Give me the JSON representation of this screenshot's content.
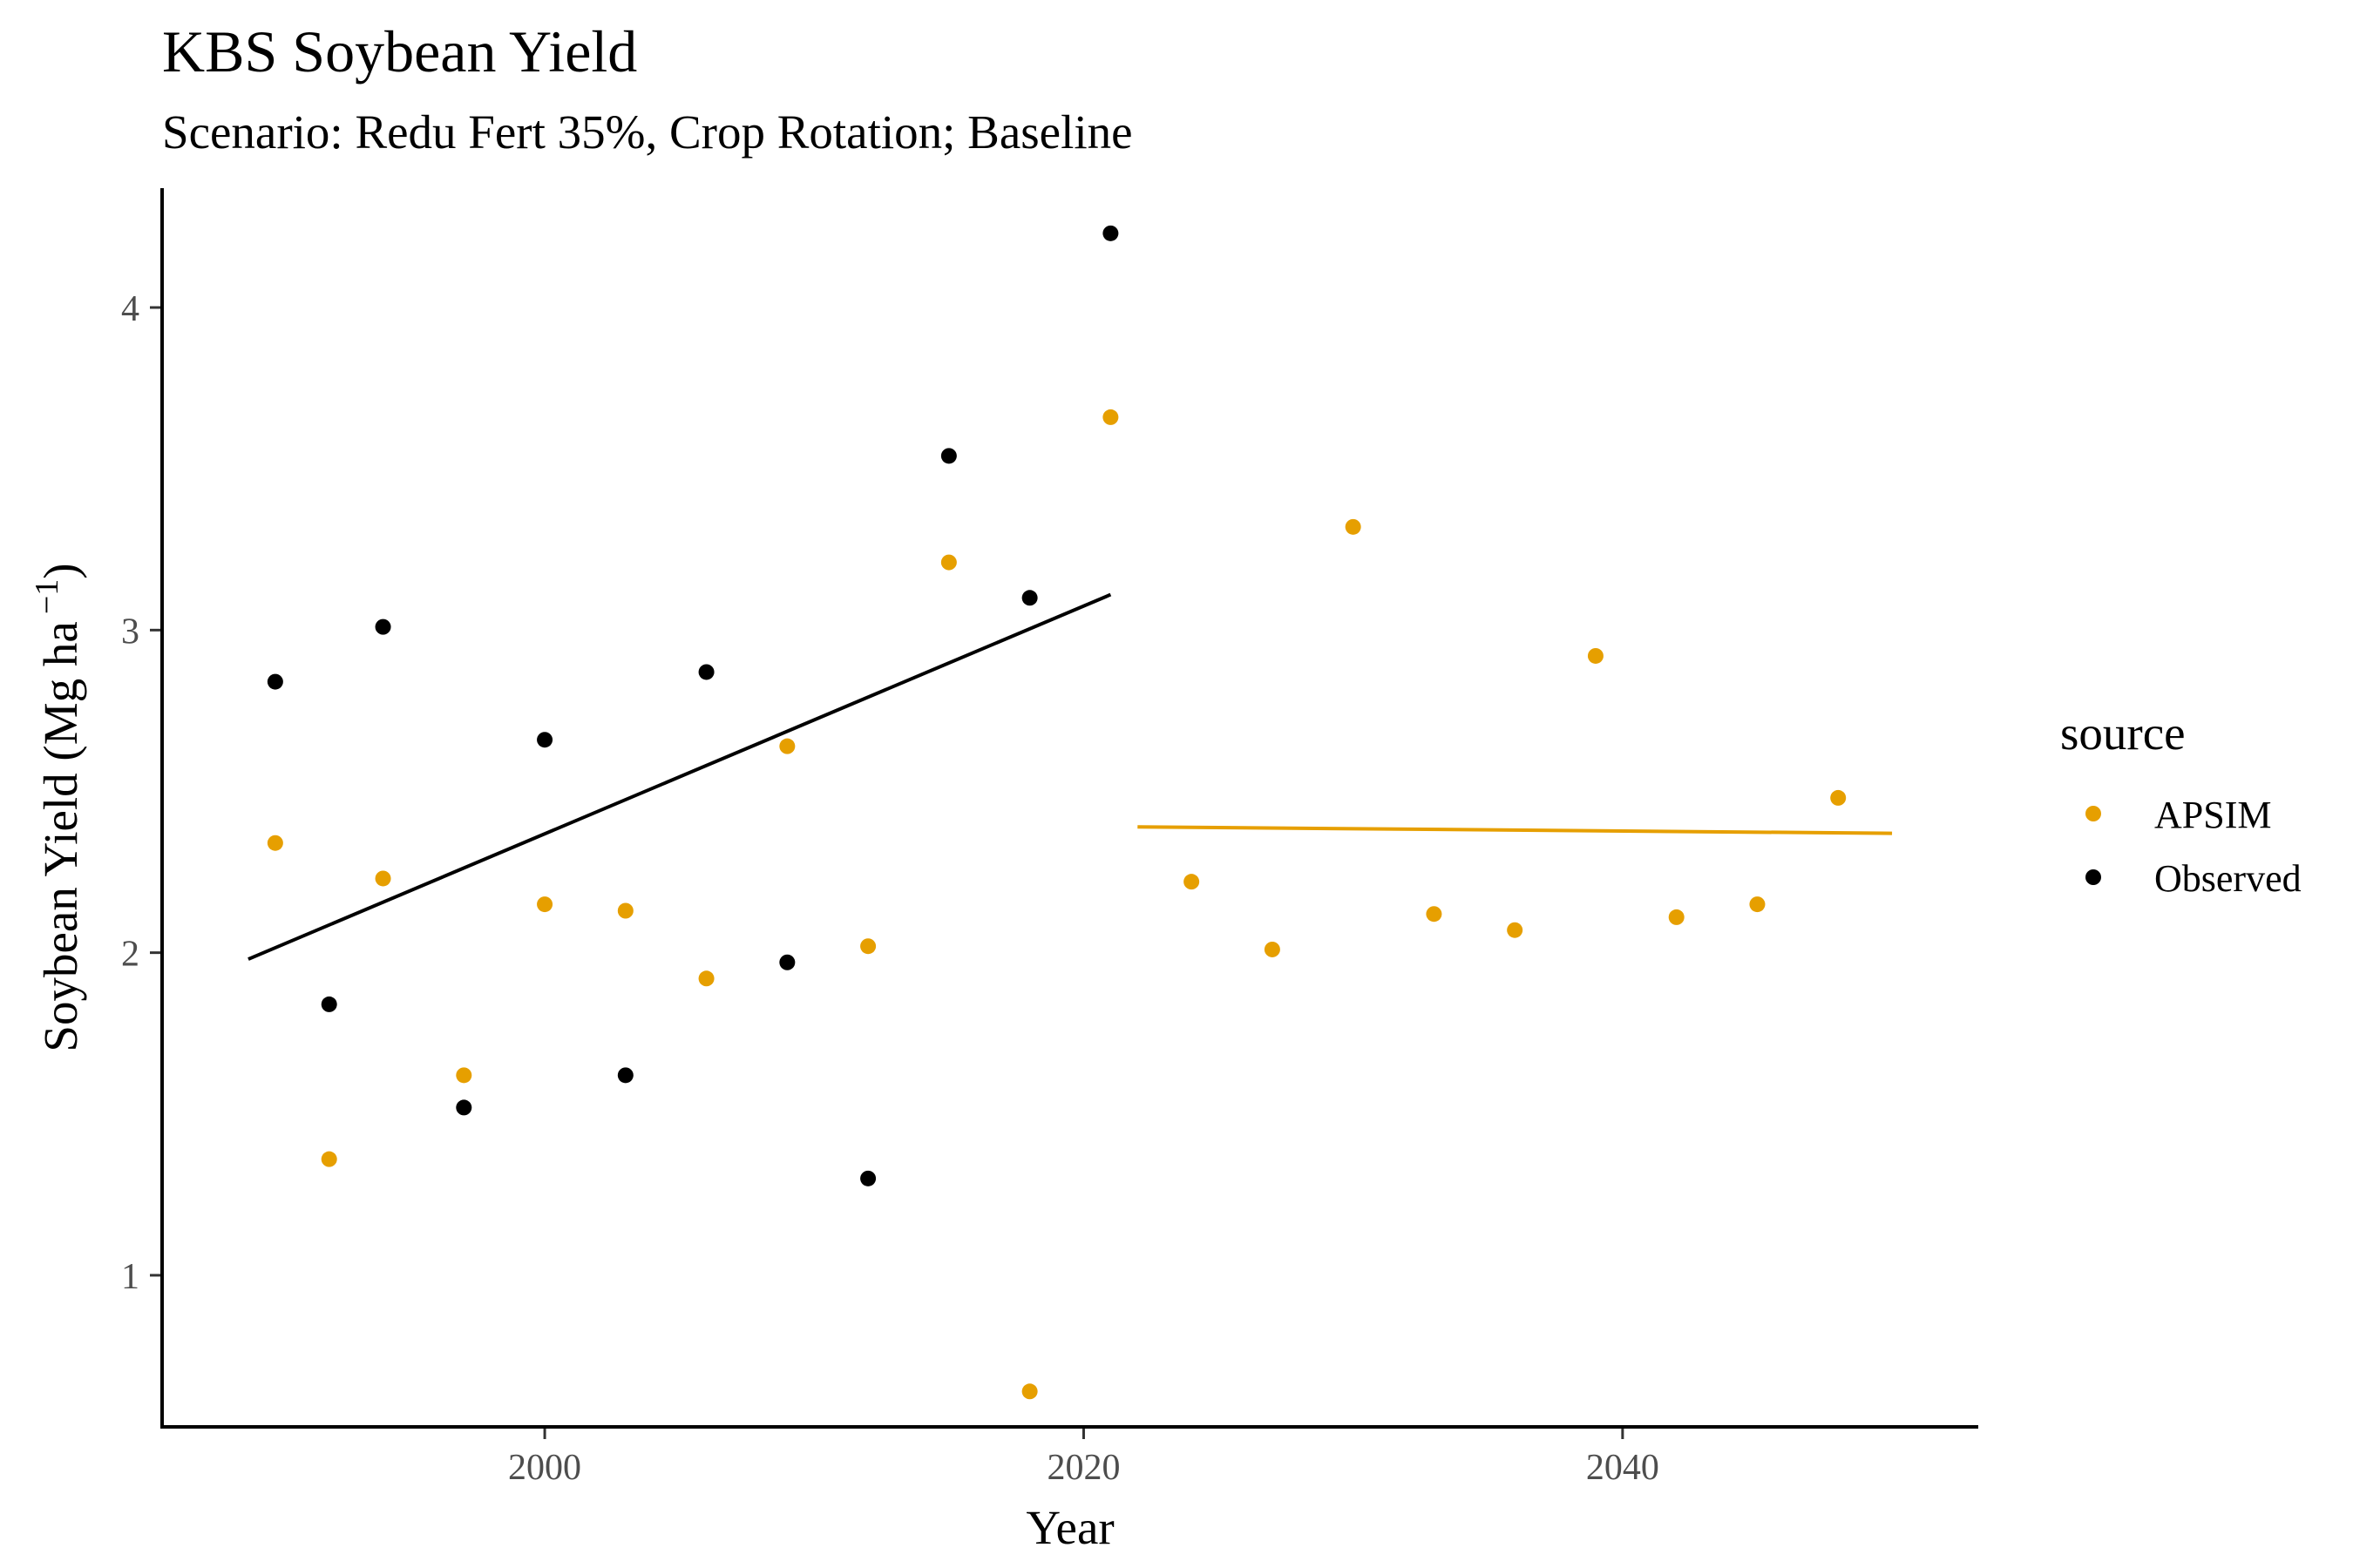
{
  "chart_data": {
    "type": "scatter",
    "title": "KBS Soybean Yield",
    "subtitle": "Scenario: Redu Fert 35%, Crop Rotation; Baseline",
    "xlabel": "Year",
    "ylabel": "Soybean Yield (Mg ha",
    "ylabel_superscript": "−1",
    "ylabel_close": ")",
    "xlim": [
      1985.8,
      2053.2
    ],
    "ylim": [
      0.53,
      4.37
    ],
    "x_ticks": [
      2000,
      2020,
      2040
    ],
    "y_ticks": [
      1,
      2,
      3,
      4
    ],
    "grid": false,
    "legend_title": "source",
    "legend_position": "right",
    "series": [
      {
        "name": "APSIM",
        "color": "#E69F00",
        "points": [
          {
            "x": 1990,
            "y": 2.34
          },
          {
            "x": 1992,
            "y": 1.36
          },
          {
            "x": 1994,
            "y": 2.23
          },
          {
            "x": 1997,
            "y": 1.62
          },
          {
            "x": 2000,
            "y": 2.15
          },
          {
            "x": 2003,
            "y": 2.13
          },
          {
            "x": 2006,
            "y": 1.92
          },
          {
            "x": 2009,
            "y": 2.64
          },
          {
            "x": 2012,
            "y": 2.02
          },
          {
            "x": 2015,
            "y": 3.21
          },
          {
            "x": 2018,
            "y": 0.64
          },
          {
            "x": 2021,
            "y": 3.66
          },
          {
            "x": 2024,
            "y": 2.22
          },
          {
            "x": 2027,
            "y": 2.01
          },
          {
            "x": 2030,
            "y": 3.32
          },
          {
            "x": 2033,
            "y": 2.12
          },
          {
            "x": 2036,
            "y": 2.07
          },
          {
            "x": 2039,
            "y": 2.92
          },
          {
            "x": 2042,
            "y": 2.11
          },
          {
            "x": 2045,
            "y": 2.15
          },
          {
            "x": 2048,
            "y": 2.48
          }
        ],
        "trend_line": {
          "x": [
            2022,
            2050
          ],
          "y": [
            2.39,
            2.37
          ]
        }
      },
      {
        "name": "Observed",
        "color": "#000000",
        "points": [
          {
            "x": 1990,
            "y": 2.84
          },
          {
            "x": 1992,
            "y": 1.84
          },
          {
            "x": 1994,
            "y": 3.01
          },
          {
            "x": 1997,
            "y": 1.52
          },
          {
            "x": 2000,
            "y": 2.66
          },
          {
            "x": 2003,
            "y": 1.62
          },
          {
            "x": 2006,
            "y": 2.87
          },
          {
            "x": 2009,
            "y": 1.97
          },
          {
            "x": 2012,
            "y": 1.3
          },
          {
            "x": 2015,
            "y": 3.54
          },
          {
            "x": 2018,
            "y": 3.1
          },
          {
            "x": 2021,
            "y": 4.23
          }
        ],
        "trend_line": {
          "x": [
            1989,
            2021
          ],
          "y": [
            1.98,
            3.11
          ]
        }
      }
    ]
  }
}
